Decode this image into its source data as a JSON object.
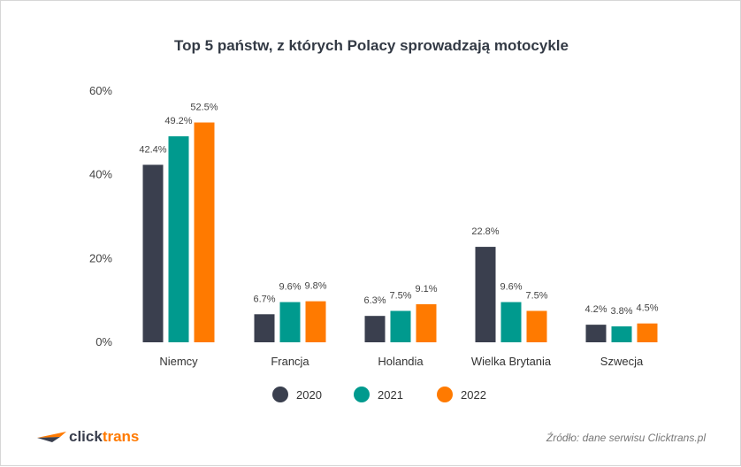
{
  "chart_data": {
    "type": "bar",
    "title": "Top 5 państw, z których Polacy sprowadzają motocykle",
    "categories": [
      "Niemcy",
      "Francja",
      "Holandia",
      "Wielka Brytania",
      "Szwecja"
    ],
    "series": [
      {
        "name": "2020",
        "color": "#3a3f4e",
        "values": [
          42.4,
          6.7,
          6.3,
          22.8,
          4.2
        ]
      },
      {
        "name": "2021",
        "color": "#009a8e",
        "values": [
          49.2,
          9.6,
          7.5,
          9.6,
          3.8
        ]
      },
      {
        "name": "2022",
        "color": "#ff7a00",
        "values": [
          52.5,
          9.8,
          9.1,
          7.5,
          4.5
        ]
      }
    ],
    "ylim": [
      0,
      60
    ],
    "yticks": [
      "0%",
      "20%",
      "40%",
      "60%"
    ],
    "ytick_values": [
      0,
      20,
      40,
      60
    ],
    "value_suffix": "%",
    "grid": false,
    "legend_position": "bottom"
  },
  "footer": {
    "logo_part1": "click",
    "logo_part2": "trans",
    "logo_color1": "#3a3f4e",
    "logo_color2": "#ff7a00",
    "source": "Źródło: dane serwisu Clicktrans.pl"
  }
}
